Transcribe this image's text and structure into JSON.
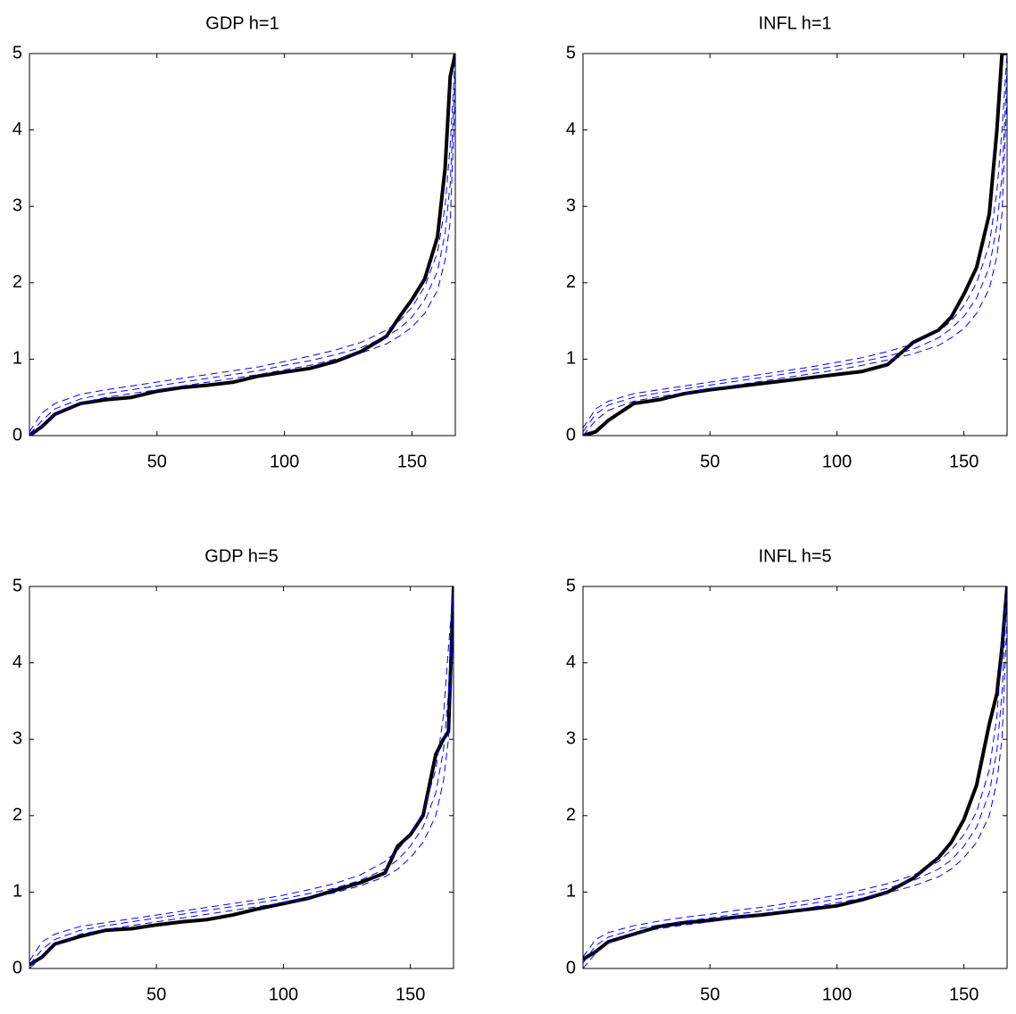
{
  "chart_data": [
    {
      "type": "line",
      "title": "GDP h=1",
      "x": [
        0,
        5,
        10,
        20,
        30,
        40,
        50,
        60,
        70,
        80,
        90,
        100,
        110,
        120,
        130,
        140,
        145,
        150,
        155,
        160,
        163,
        165,
        167
      ],
      "xlim": [
        0,
        167
      ],
      "xticks": [
        50,
        100,
        150
      ],
      "ylim": [
        0,
        5
      ],
      "yticks": [
        0,
        1,
        2,
        3,
        4,
        5
      ],
      "series": [
        {
          "color": "#000000",
          "line_width": 4,
          "dashed": false,
          "values": [
            0,
            0.12,
            0.28,
            0.42,
            0.47,
            0.5,
            0.58,
            0.63,
            0.66,
            0.7,
            0.78,
            0.83,
            0.88,
            0.97,
            1.1,
            1.3,
            1.55,
            1.78,
            2.05,
            2.6,
            3.5,
            4.7,
            5
          ]
        },
        {
          "color": "#0000ff",
          "line_width": 1,
          "dashed": true,
          "values": [
            0.05,
            0.3,
            0.42,
            0.54,
            0.6,
            0.65,
            0.7,
            0.75,
            0.8,
            0.85,
            0.9,
            0.97,
            1.04,
            1.12,
            1.22,
            1.38,
            1.5,
            1.68,
            1.95,
            2.4,
            3.0,
            3.8,
            5
          ]
        },
        {
          "color": "#0000ff",
          "line_width": 1,
          "dashed": true,
          "values": [
            0.02,
            0.2,
            0.35,
            0.48,
            0.55,
            0.6,
            0.65,
            0.7,
            0.75,
            0.8,
            0.85,
            0.92,
            0.98,
            1.06,
            1.15,
            1.3,
            1.4,
            1.55,
            1.78,
            2.15,
            2.65,
            3.3,
            4.8
          ]
        },
        {
          "color": "#0000ff",
          "line_width": 1,
          "dashed": true,
          "values": [
            0,
            0.12,
            0.28,
            0.43,
            0.5,
            0.55,
            0.6,
            0.65,
            0.7,
            0.75,
            0.8,
            0.86,
            0.92,
            1.0,
            1.08,
            1.2,
            1.3,
            1.42,
            1.6,
            1.9,
            2.3,
            2.8,
            4.5
          ]
        }
      ]
    },
    {
      "type": "line",
      "title": "INFL h=1",
      "x": [
        0,
        5,
        10,
        20,
        30,
        40,
        50,
        60,
        70,
        80,
        90,
        100,
        110,
        120,
        130,
        140,
        145,
        150,
        155,
        160,
        163,
        165,
        167
      ],
      "xlim": [
        0,
        167
      ],
      "xticks": [
        50,
        100,
        150
      ],
      "ylim": [
        0,
        5
      ],
      "yticks": [
        0,
        1,
        2,
        3,
        4,
        5
      ],
      "series": [
        {
          "color": "#000000",
          "line_width": 4,
          "dashed": false,
          "values": [
            0,
            0.05,
            0.2,
            0.42,
            0.47,
            0.55,
            0.6,
            0.64,
            0.68,
            0.72,
            0.76,
            0.8,
            0.84,
            0.93,
            1.22,
            1.38,
            1.55,
            1.85,
            2.2,
            2.9,
            4.0,
            5,
            5
          ]
        },
        {
          "color": "#0000ff",
          "line_width": 1,
          "dashed": true,
          "values": [
            0.1,
            0.35,
            0.45,
            0.55,
            0.6,
            0.65,
            0.7,
            0.75,
            0.8,
            0.85,
            0.9,
            0.96,
            1.02,
            1.1,
            1.2,
            1.36,
            1.5,
            1.7,
            2.0,
            2.5,
            3.2,
            4.0,
            5
          ]
        },
        {
          "color": "#0000ff",
          "line_width": 1,
          "dashed": true,
          "values": [
            0.05,
            0.28,
            0.4,
            0.5,
            0.56,
            0.61,
            0.66,
            0.71,
            0.76,
            0.81,
            0.86,
            0.91,
            0.97,
            1.04,
            1.13,
            1.28,
            1.4,
            1.56,
            1.8,
            2.2,
            2.75,
            3.4,
            4.8
          ]
        },
        {
          "color": "#0000ff",
          "line_width": 1,
          "dashed": true,
          "values": [
            0,
            0.2,
            0.33,
            0.45,
            0.51,
            0.56,
            0.61,
            0.66,
            0.71,
            0.76,
            0.81,
            0.86,
            0.92,
            0.99,
            1.07,
            1.18,
            1.28,
            1.4,
            1.6,
            1.92,
            2.35,
            2.9,
            4.5
          ]
        }
      ]
    },
    {
      "type": "line",
      "title": "GDP h=5",
      "x": [
        0,
        5,
        10,
        20,
        30,
        40,
        50,
        60,
        70,
        80,
        90,
        100,
        110,
        120,
        130,
        140,
        145,
        150,
        155,
        160,
        163,
        165,
        167
      ],
      "xlim": [
        0,
        167
      ],
      "xticks": [
        50,
        100,
        150
      ],
      "ylim": [
        0,
        5
      ],
      "yticks": [
        0,
        1,
        2,
        3,
        4,
        5
      ],
      "series": [
        {
          "color": "#000000",
          "line_width": 4,
          "dashed": false,
          "values": [
            0.05,
            0.15,
            0.32,
            0.42,
            0.5,
            0.52,
            0.57,
            0.61,
            0.64,
            0.7,
            0.78,
            0.85,
            0.92,
            1.02,
            1.12,
            1.25,
            1.6,
            1.75,
            2.0,
            2.8,
            3.0,
            3.1,
            5
          ]
        },
        {
          "color": "#0000ff",
          "line_width": 1,
          "dashed": true,
          "values": [
            0.1,
            0.35,
            0.45,
            0.55,
            0.6,
            0.65,
            0.7,
            0.75,
            0.8,
            0.85,
            0.9,
            0.96,
            1.03,
            1.11,
            1.22,
            1.4,
            1.55,
            1.75,
            2.05,
            2.6,
            3.3,
            4.2,
            5
          ]
        },
        {
          "color": "#0000ff",
          "line_width": 1,
          "dashed": true,
          "values": [
            0.05,
            0.25,
            0.38,
            0.5,
            0.56,
            0.61,
            0.66,
            0.71,
            0.76,
            0.81,
            0.86,
            0.91,
            0.98,
            1.05,
            1.15,
            1.3,
            1.42,
            1.6,
            1.85,
            2.3,
            2.85,
            3.6,
            5
          ]
        },
        {
          "color": "#0000ff",
          "line_width": 1,
          "dashed": true,
          "values": [
            0,
            0.15,
            0.3,
            0.45,
            0.51,
            0.56,
            0.61,
            0.66,
            0.71,
            0.76,
            0.81,
            0.86,
            0.92,
            0.99,
            1.08,
            1.2,
            1.3,
            1.45,
            1.65,
            2.0,
            2.45,
            3.0,
            4.6
          ]
        }
      ]
    },
    {
      "type": "line",
      "title": "INFL h=5",
      "x": [
        0,
        5,
        10,
        20,
        30,
        40,
        50,
        60,
        70,
        80,
        90,
        100,
        110,
        120,
        130,
        140,
        145,
        150,
        155,
        160,
        163,
        165,
        167
      ],
      "xlim": [
        0,
        167
      ],
      "xticks": [
        50,
        100,
        150
      ],
      "ylim": [
        0,
        5
      ],
      "yticks": [
        0,
        1,
        2,
        3,
        4,
        5
      ],
      "series": [
        {
          "color": "#000000",
          "line_width": 4,
          "dashed": false,
          "values": [
            0.12,
            0.22,
            0.35,
            0.45,
            0.55,
            0.6,
            0.63,
            0.67,
            0.7,
            0.74,
            0.78,
            0.82,
            0.9,
            1.0,
            1.18,
            1.45,
            1.65,
            1.95,
            2.4,
            3.2,
            3.6,
            4.2,
            5
          ]
        },
        {
          "color": "#0000ff",
          "line_width": 1,
          "dashed": true,
          "values": [
            0.15,
            0.38,
            0.47,
            0.56,
            0.62,
            0.67,
            0.71,
            0.76,
            0.8,
            0.85,
            0.9,
            0.96,
            1.03,
            1.11,
            1.22,
            1.4,
            1.55,
            1.75,
            2.05,
            2.6,
            3.3,
            4.2,
            5
          ]
        },
        {
          "color": "#0000ff",
          "line_width": 1,
          "dashed": true,
          "values": [
            0.07,
            0.3,
            0.41,
            0.51,
            0.57,
            0.62,
            0.66,
            0.71,
            0.75,
            0.8,
            0.85,
            0.91,
            0.97,
            1.05,
            1.15,
            1.3,
            1.42,
            1.6,
            1.85,
            2.3,
            2.85,
            3.6,
            5
          ]
        },
        {
          "color": "#0000ff",
          "line_width": 1,
          "dashed": true,
          "values": [
            0,
            0.2,
            0.33,
            0.46,
            0.52,
            0.57,
            0.61,
            0.66,
            0.7,
            0.75,
            0.8,
            0.86,
            0.92,
            0.99,
            1.08,
            1.2,
            1.3,
            1.45,
            1.65,
            2.0,
            2.45,
            3.0,
            4.6
          ]
        }
      ]
    }
  ]
}
